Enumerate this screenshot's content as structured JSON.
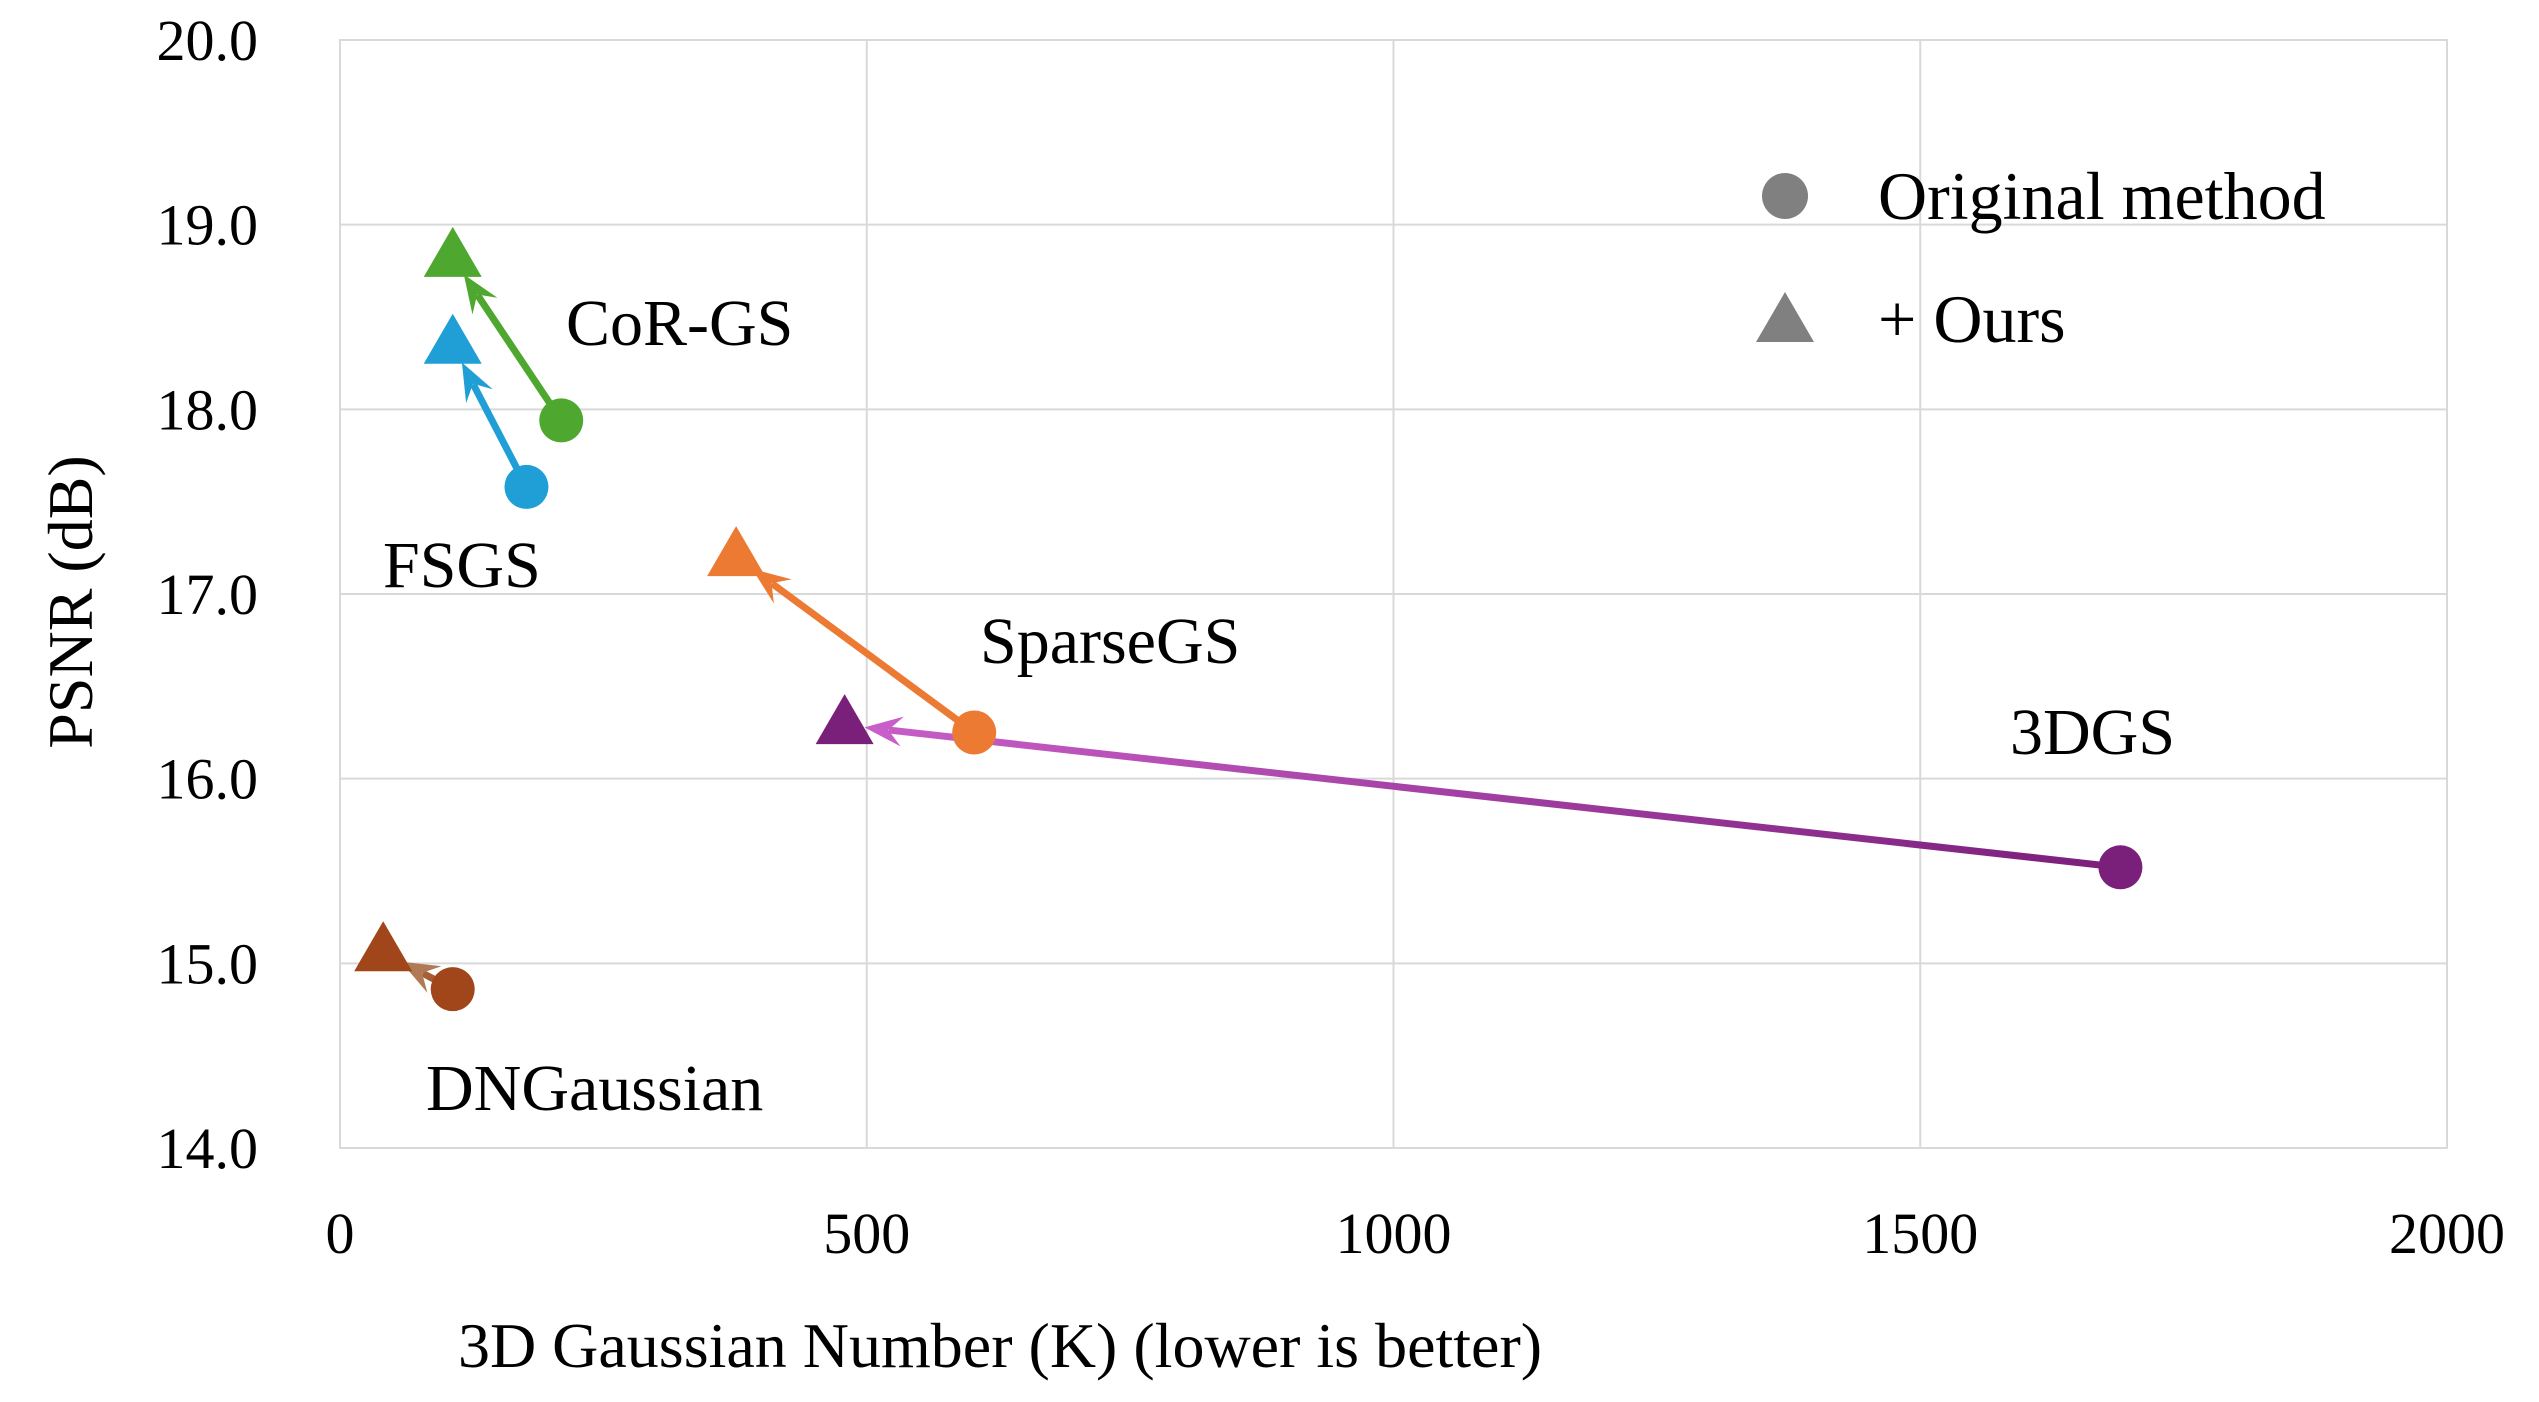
{
  "chart_data": {
    "type": "scatter",
    "xlabel": "3D Gaussian Number (K) (lower is better)",
    "ylabel": "PSNR (dB)",
    "xlim": [
      0,
      2000
    ],
    "ylim": [
      14.0,
      20.0
    ],
    "x_ticks": [
      "0",
      "500",
      "1000",
      "1500",
      "2000"
    ],
    "y_ticks": [
      "14.0",
      "15.0",
      "16.0",
      "17.0",
      "18.0",
      "19.0",
      "20.0"
    ],
    "grid": true,
    "legend_position": "top-right",
    "legend": [
      {
        "marker": "circle",
        "label": "Original method"
      },
      {
        "marker": "triangle",
        "label": "+ Ours"
      }
    ],
    "series": [
      {
        "name": "CoR-GS",
        "color": "#4ea72e",
        "original": {
          "x": 210,
          "y": 17.94
        },
        "ours": {
          "x": 107,
          "y": 18.82
        }
      },
      {
        "name": "FSGS",
        "color": "#1f9fd6",
        "original": {
          "x": 177,
          "y": 17.58
        },
        "ours": {
          "x": 107,
          "y": 18.35
        }
      },
      {
        "name": "SparseGS",
        "color": "#ed7a33",
        "original": {
          "x": 602,
          "y": 16.25
        },
        "ours": {
          "x": 376,
          "y": 17.2
        }
      },
      {
        "name": "3DGS",
        "color": "#7a1f7a",
        "line_color": "#c85ec8",
        "original": {
          "x": 1690,
          "y": 15.52
        },
        "ours": {
          "x": 479,
          "y": 16.29
        }
      },
      {
        "name": "DNGaussian",
        "color": "#a0461a",
        "line_color": "#b07a55",
        "original": {
          "x": 107,
          "y": 14.86
        },
        "ours": {
          "x": 41,
          "y": 15.06
        }
      }
    ]
  }
}
